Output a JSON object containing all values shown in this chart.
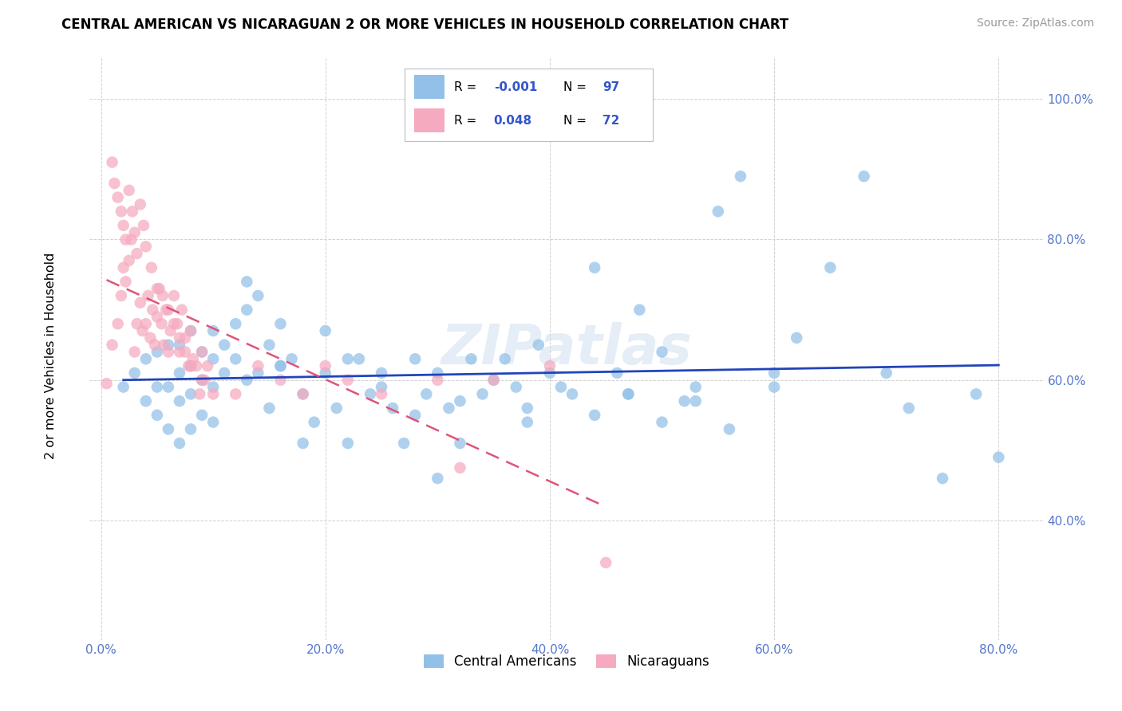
{
  "title": "CENTRAL AMERICAN VS NICARAGUAN 2 OR MORE VEHICLES IN HOUSEHOLD CORRELATION CHART",
  "source": "Source: ZipAtlas.com",
  "ylabel": "2 or more Vehicles in Household",
  "xlim": [
    -0.01,
    0.84
  ],
  "ylim": [
    0.23,
    1.06
  ],
  "xtick_vals": [
    0.0,
    0.2,
    0.4,
    0.6,
    0.8
  ],
  "xtick_labels": [
    "0.0%",
    "20.0%",
    "40.0%",
    "60.0%",
    "80.0%"
  ],
  "ytick_vals": [
    0.4,
    0.6,
    0.8,
    1.0
  ],
  "ytick_labels": [
    "40.0%",
    "60.0%",
    "80.0%",
    "100.0%"
  ],
  "blue_color": "#92C0E8",
  "pink_color": "#F5AABF",
  "blue_line_color": "#2244BB",
  "pink_line_color": "#DD5577",
  "blue_label": "Central Americans",
  "pink_label": "Nicaraguans",
  "blue_R_text": "-0.001",
  "blue_N_text": "97",
  "pink_R_text": "0.048",
  "pink_N_text": "72",
  "watermark": "ZIPatlas",
  "blue_x": [
    0.02,
    0.03,
    0.04,
    0.04,
    0.05,
    0.05,
    0.05,
    0.06,
    0.06,
    0.06,
    0.07,
    0.07,
    0.07,
    0.07,
    0.08,
    0.08,
    0.08,
    0.08,
    0.09,
    0.09,
    0.09,
    0.1,
    0.1,
    0.1,
    0.1,
    0.11,
    0.11,
    0.12,
    0.12,
    0.13,
    0.13,
    0.14,
    0.14,
    0.15,
    0.15,
    0.16,
    0.16,
    0.17,
    0.18,
    0.18,
    0.19,
    0.2,
    0.21,
    0.22,
    0.23,
    0.24,
    0.25,
    0.26,
    0.27,
    0.28,
    0.29,
    0.3,
    0.31,
    0.32,
    0.33,
    0.34,
    0.36,
    0.37,
    0.38,
    0.39,
    0.4,
    0.42,
    0.44,
    0.46,
    0.47,
    0.48,
    0.5,
    0.52,
    0.53,
    0.55,
    0.57,
    0.6,
    0.62,
    0.65,
    0.68,
    0.7,
    0.72,
    0.75,
    0.78,
    0.8,
    0.13,
    0.16,
    0.2,
    0.22,
    0.25,
    0.28,
    0.3,
    0.32,
    0.35,
    0.38,
    0.41,
    0.44,
    0.47,
    0.5,
    0.53,
    0.56,
    0.6
  ],
  "blue_y": [
    0.59,
    0.61,
    0.63,
    0.57,
    0.64,
    0.59,
    0.55,
    0.65,
    0.59,
    0.53,
    0.65,
    0.61,
    0.57,
    0.51,
    0.67,
    0.62,
    0.58,
    0.53,
    0.64,
    0.6,
    0.55,
    0.67,
    0.63,
    0.59,
    0.54,
    0.65,
    0.61,
    0.68,
    0.63,
    0.7,
    0.6,
    0.72,
    0.61,
    0.65,
    0.56,
    0.68,
    0.62,
    0.63,
    0.58,
    0.51,
    0.54,
    0.61,
    0.56,
    0.51,
    0.63,
    0.58,
    0.61,
    0.56,
    0.51,
    0.63,
    0.58,
    0.46,
    0.56,
    0.51,
    0.63,
    0.58,
    0.63,
    0.59,
    0.54,
    0.65,
    0.61,
    0.58,
    0.76,
    0.61,
    0.58,
    0.7,
    0.64,
    0.57,
    0.59,
    0.84,
    0.89,
    0.61,
    0.66,
    0.76,
    0.89,
    0.61,
    0.56,
    0.46,
    0.58,
    0.49,
    0.74,
    0.62,
    0.67,
    0.63,
    0.59,
    0.55,
    0.61,
    0.57,
    0.6,
    0.56,
    0.59,
    0.55,
    0.58,
    0.54,
    0.57,
    0.53,
    0.59
  ],
  "pink_x": [
    0.005,
    0.01,
    0.015,
    0.018,
    0.02,
    0.022,
    0.025,
    0.027,
    0.03,
    0.032,
    0.035,
    0.037,
    0.04,
    0.042,
    0.044,
    0.046,
    0.048,
    0.05,
    0.052,
    0.054,
    0.056,
    0.058,
    0.06,
    0.062,
    0.065,
    0.068,
    0.07,
    0.072,
    0.075,
    0.078,
    0.08,
    0.082,
    0.085,
    0.088,
    0.09,
    0.092,
    0.095,
    0.01,
    0.012,
    0.015,
    0.018,
    0.02,
    0.022,
    0.025,
    0.028,
    0.03,
    0.032,
    0.035,
    0.038,
    0.04,
    0.045,
    0.05,
    0.055,
    0.06,
    0.065,
    0.07,
    0.075,
    0.08,
    0.09,
    0.1,
    0.12,
    0.14,
    0.16,
    0.18,
    0.2,
    0.22,
    0.25,
    0.3,
    0.35,
    0.4,
    0.45,
    0.32
  ],
  "pink_y": [
    0.595,
    0.65,
    0.68,
    0.72,
    0.76,
    0.74,
    0.77,
    0.8,
    0.64,
    0.68,
    0.71,
    0.67,
    0.68,
    0.72,
    0.66,
    0.7,
    0.65,
    0.69,
    0.73,
    0.68,
    0.65,
    0.7,
    0.64,
    0.67,
    0.72,
    0.68,
    0.64,
    0.7,
    0.66,
    0.62,
    0.67,
    0.63,
    0.62,
    0.58,
    0.64,
    0.6,
    0.62,
    0.91,
    0.88,
    0.86,
    0.84,
    0.82,
    0.8,
    0.87,
    0.84,
    0.81,
    0.78,
    0.85,
    0.82,
    0.79,
    0.76,
    0.73,
    0.72,
    0.7,
    0.68,
    0.66,
    0.64,
    0.62,
    0.6,
    0.58,
    0.58,
    0.62,
    0.6,
    0.58,
    0.62,
    0.6,
    0.58,
    0.6,
    0.6,
    0.62,
    0.34,
    0.475
  ]
}
